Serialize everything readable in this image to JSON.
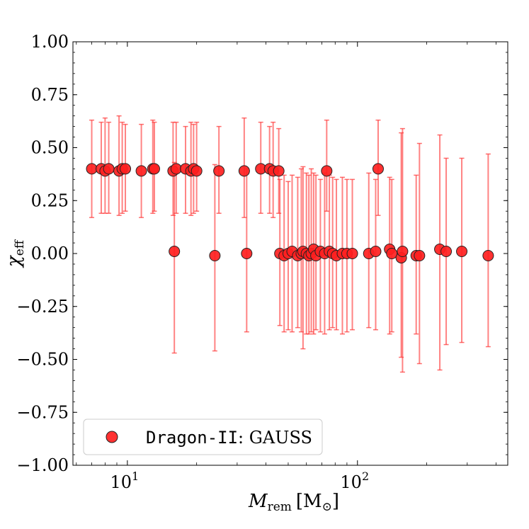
{
  "chart_data": {
    "type": "scatter",
    "xscale": "log",
    "xlim": [
      5.8,
      450
    ],
    "ylim": [
      -1.0,
      1.0
    ],
    "xlabel_main": "M",
    "xlabel_sub": "rem",
    "xlabel_unit": "[M",
    "xlabel_unit_sym": "⊙",
    "xlabel_close": "]",
    "ylabel_main": "χ",
    "ylabel_sub": "eff",
    "xticks": [
      {
        "value": 10,
        "base": "10",
        "exp": "1"
      },
      {
        "value": 100,
        "base": "10",
        "exp": "2"
      }
    ],
    "yticks": [
      {
        "value": 1.0,
        "label": "1.00"
      },
      {
        "value": 0.75,
        "label": "0.75"
      },
      {
        "value": 0.5,
        "label": "0.50"
      },
      {
        "value": 0.25,
        "label": "0.25"
      },
      {
        "value": 0.0,
        "label": "0.00"
      },
      {
        "value": -0.25,
        "label": "−0.25"
      },
      {
        "value": -0.5,
        "label": "−0.50"
      },
      {
        "value": -0.75,
        "label": "−0.75"
      },
      {
        "value": -1.0,
        "label": "−1.00"
      }
    ],
    "grid": false,
    "legend_placement": "lower-left",
    "legend": {
      "name_mono": "Dragon-II",
      "name_rest": ": GAUSS"
    },
    "colors": {
      "marker": "#ff2020",
      "edge": "#222222",
      "errorbar": "#ff3030"
    },
    "series": [
      {
        "name": "Dragon-II: GAUSS",
        "points": [
          {
            "x": 7.0,
            "y": 0.4,
            "lo": 0.17,
            "hi": 0.63
          },
          {
            "x": 7.7,
            "y": 0.4,
            "lo": 0.19,
            "hi": 0.62
          },
          {
            "x": 8.0,
            "y": 0.39,
            "lo": 0.19,
            "hi": 0.64
          },
          {
            "x": 8.3,
            "y": 0.4,
            "lo": 0.19,
            "hi": 0.62
          },
          {
            "x": 9.2,
            "y": 0.39,
            "lo": 0.18,
            "hi": 0.65
          },
          {
            "x": 9.5,
            "y": 0.4,
            "lo": 0.19,
            "hi": 0.62
          },
          {
            "x": 9.8,
            "y": 0.4,
            "lo": 0.2,
            "hi": 0.61
          },
          {
            "x": 11.5,
            "y": 0.39,
            "lo": 0.17,
            "hi": 0.61
          },
          {
            "x": 12.9,
            "y": 0.4,
            "lo": 0.19,
            "hi": 0.63
          },
          {
            "x": 13.1,
            "y": 0.4,
            "lo": 0.2,
            "hi": 0.62
          },
          {
            "x": 15.8,
            "y": 0.39,
            "lo": 0.18,
            "hi": 0.62
          },
          {
            "x": 16.3,
            "y": 0.4,
            "lo": 0.19,
            "hi": 0.62
          },
          {
            "x": 17.9,
            "y": 0.4,
            "lo": 0.19,
            "hi": 0.6
          },
          {
            "x": 18.9,
            "y": 0.39,
            "lo": 0.18,
            "hi": 0.62
          },
          {
            "x": 19.4,
            "y": 0.4,
            "lo": 0.19,
            "hi": 0.61
          },
          {
            "x": 20.0,
            "y": 0.39,
            "lo": 0.2,
            "hi": 0.62
          },
          {
            "x": 25.0,
            "y": 0.39,
            "lo": 0.19,
            "hi": 0.6
          },
          {
            "x": 32.2,
            "y": 0.39,
            "lo": 0.17,
            "hi": 0.64
          },
          {
            "x": 38.0,
            "y": 0.4,
            "lo": 0.19,
            "hi": 0.62
          },
          {
            "x": 41.5,
            "y": 0.4,
            "lo": 0.19,
            "hi": 0.6
          },
          {
            "x": 43.0,
            "y": 0.39,
            "lo": 0.17,
            "hi": 0.62
          },
          {
            "x": 45.5,
            "y": 0.39,
            "lo": 0.19,
            "hi": 0.59
          },
          {
            "x": 73.5,
            "y": 0.39,
            "lo": 0.2,
            "hi": 0.63
          },
          {
            "x": 123.0,
            "y": 0.4,
            "lo": 0.18,
            "hi": 0.63
          },
          {
            "x": 16.0,
            "y": 0.01,
            "lo": -0.47,
            "hi": 0.43
          },
          {
            "x": 24.0,
            "y": -0.01,
            "lo": -0.46,
            "hi": 0.42
          },
          {
            "x": 33.0,
            "y": 0.0,
            "lo": -0.37,
            "hi": 0.4
          },
          {
            "x": 46.0,
            "y": 0.0,
            "lo": -0.34,
            "hi": 0.35
          },
          {
            "x": 48.0,
            "y": -0.01,
            "lo": -0.37,
            "hi": 0.37
          },
          {
            "x": 50.0,
            "y": 0.0,
            "lo": -0.36,
            "hi": 0.34
          },
          {
            "x": 52.0,
            "y": 0.01,
            "lo": -0.37,
            "hi": 0.37
          },
          {
            "x": 55.0,
            "y": -0.01,
            "lo": -0.35,
            "hi": 0.36
          },
          {
            "x": 57.0,
            "y": 0.0,
            "lo": -0.37,
            "hi": 0.4
          },
          {
            "x": 58.0,
            "y": 0.01,
            "lo": -0.45,
            "hi": 0.41
          },
          {
            "x": 60.0,
            "y": 0.0,
            "lo": -0.38,
            "hi": 0.38
          },
          {
            "x": 61.5,
            "y": -0.01,
            "lo": -0.38,
            "hi": 0.37
          },
          {
            "x": 63.0,
            "y": 0.0,
            "lo": -0.37,
            "hi": 0.4
          },
          {
            "x": 64.5,
            "y": 0.02,
            "lo": -0.38,
            "hi": 0.38
          },
          {
            "x": 66.0,
            "y": -0.01,
            "lo": -0.36,
            "hi": 0.37
          },
          {
            "x": 69.0,
            "y": 0.01,
            "lo": -0.37,
            "hi": 0.35
          },
          {
            "x": 72.0,
            "y": 0.0,
            "lo": -0.38,
            "hi": 0.38
          },
          {
            "x": 75.5,
            "y": 0.01,
            "lo": -0.36,
            "hi": 0.37
          },
          {
            "x": 78.0,
            "y": 0.0,
            "lo": -0.35,
            "hi": 0.36
          },
          {
            "x": 81.0,
            "y": -0.01,
            "lo": -0.36,
            "hi": 0.35
          },
          {
            "x": 86.0,
            "y": 0.0,
            "lo": -0.38,
            "hi": 0.36
          },
          {
            "x": 90.0,
            "y": 0.0,
            "lo": -0.37,
            "hi": 0.35
          },
          {
            "x": 95.0,
            "y": 0.0,
            "lo": -0.36,
            "hi": 0.35
          },
          {
            "x": 112.0,
            "y": 0.0,
            "lo": -0.35,
            "hi": 0.38
          },
          {
            "x": 120.0,
            "y": 0.01,
            "lo": -0.36,
            "hi": 0.35
          },
          {
            "x": 138.0,
            "y": 0.02,
            "lo": -0.38,
            "hi": 0.36
          },
          {
            "x": 141.0,
            "y": 0.0,
            "lo": -0.37,
            "hi": 0.35
          },
          {
            "x": 155.0,
            "y": -0.02,
            "lo": -0.49,
            "hi": 0.57
          },
          {
            "x": 157.0,
            "y": 0.01,
            "lo": -0.56,
            "hi": 0.59
          },
          {
            "x": 180.0,
            "y": -0.01,
            "lo": -0.38,
            "hi": 0.37
          },
          {
            "x": 186.0,
            "y": -0.01,
            "lo": -0.52,
            "hi": 0.52
          },
          {
            "x": 228.0,
            "y": 0.02,
            "lo": -0.55,
            "hi": 0.56
          },
          {
            "x": 243.0,
            "y": 0.01,
            "lo": -0.43,
            "hi": 0.45
          },
          {
            "x": 284.0,
            "y": 0.01,
            "lo": -0.42,
            "hi": 0.45
          },
          {
            "x": 370.0,
            "y": -0.01,
            "lo": -0.44,
            "hi": 0.47
          }
        ]
      }
    ]
  }
}
